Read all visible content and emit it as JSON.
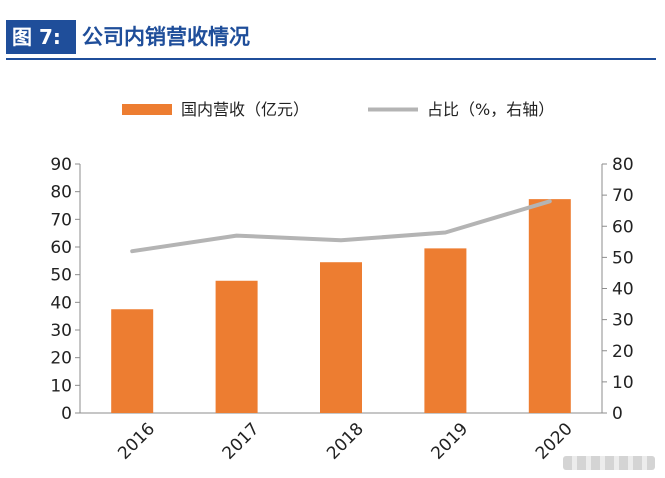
{
  "header": {
    "fig_label": "图 7:",
    "title": "公司内销营收情况"
  },
  "colors": {
    "brand": "#1f4e9a",
    "bar": "#ed7d31",
    "line": "#b4b4b4"
  },
  "chart_data": {
    "type": "bar",
    "categories": [
      "2016",
      "2017",
      "2018",
      "2019",
      "2020"
    ],
    "series": [
      {
        "name": "国内营收（亿元）",
        "type": "bar",
        "axis": "left",
        "values": [
          37.5,
          47.8,
          54.5,
          59.5,
          77.3
        ]
      },
      {
        "name": "占比（%，右轴）",
        "type": "line",
        "axis": "right",
        "values": [
          52,
          57,
          55.5,
          58,
          68
        ]
      }
    ],
    "ylim_left": [
      0,
      90
    ],
    "yticks_left": [
      0,
      10,
      20,
      30,
      40,
      50,
      60,
      70,
      80,
      90
    ],
    "ylim_right": [
      0,
      80
    ],
    "yticks_right": [
      0,
      10,
      20,
      30,
      40,
      50,
      60,
      70,
      80
    ],
    "xlabel": "",
    "ylabel": "",
    "grid": false,
    "legend_position": "top"
  }
}
